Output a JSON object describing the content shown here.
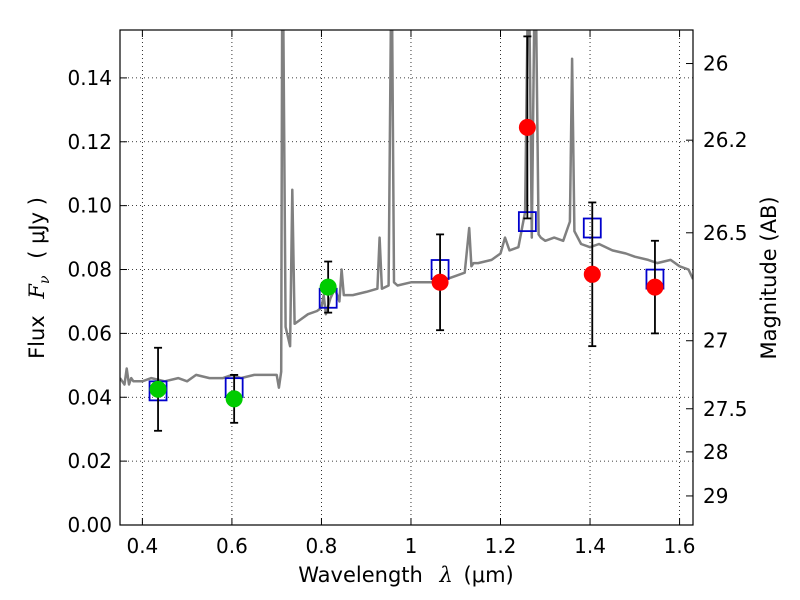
{
  "chart_data": {
    "type": "scatter",
    "xlabel": {
      "text": "Wavelength",
      "symbol": "λ",
      "unit": "(μm)"
    },
    "ylabel": {
      "text": "Flux",
      "symbol": "F",
      "subscript": "ν",
      "unit": "( μJy )"
    },
    "y2label": "Magnitude (AB)",
    "xlim": [
      0.35,
      1.63
    ],
    "ylim": [
      0.0,
      0.155
    ],
    "xticks": [
      0.4,
      0.6,
      0.8,
      1.0,
      1.2,
      1.4,
      1.6
    ],
    "xtick_labels": [
      "0.4",
      "0.6",
      "0.8",
      "1",
      "1.2",
      "1.4",
      "1.6"
    ],
    "yticks": [
      0.0,
      0.02,
      0.04,
      0.06,
      0.08,
      0.1,
      0.12,
      0.14
    ],
    "ytick_labels": [
      "0.00",
      "0.02",
      "0.04",
      "0.06",
      "0.08",
      "0.10",
      "0.12",
      "0.14"
    ],
    "y2ticks": [
      {
        "flux": 0.1445,
        "label": "26"
      },
      {
        "flux": 0.1205,
        "label": "26.2"
      },
      {
        "flux": 0.0915,
        "label": "26.5"
      },
      {
        "flux": 0.0577,
        "label": "27"
      },
      {
        "flux": 0.0364,
        "label": "27.5"
      },
      {
        "flux": 0.0229,
        "label": "28"
      },
      {
        "flux": 0.0091,
        "label": "29"
      }
    ],
    "grid": true,
    "series": [
      {
        "style": "line",
        "color": "#808080",
        "x": [
          0.35,
          0.36,
          0.365,
          0.37,
          0.375,
          0.38,
          0.4,
          0.42,
          0.45,
          0.48,
          0.5,
          0.52,
          0.55,
          0.58,
          0.6,
          0.62,
          0.65,
          0.68,
          0.7,
          0.705,
          0.71,
          0.712,
          0.715,
          0.72,
          0.73,
          0.735,
          0.74,
          0.75,
          0.77,
          0.79,
          0.8,
          0.805,
          0.81,
          0.82,
          0.83,
          0.84,
          0.845,
          0.85,
          0.87,
          0.9,
          0.925,
          0.93,
          0.935,
          0.95,
          0.955,
          0.958,
          0.962,
          0.97,
          1.0,
          1.05,
          1.08,
          1.1,
          1.12,
          1.13,
          1.135,
          1.14,
          1.15,
          1.18,
          1.2,
          1.21,
          1.22,
          1.24,
          1.255,
          1.26,
          1.265,
          1.27,
          1.275,
          1.28,
          1.285,
          1.29,
          1.3,
          1.32,
          1.34,
          1.355,
          1.36,
          1.365,
          1.38,
          1.4,
          1.42,
          1.45,
          1.48,
          1.5,
          1.53,
          1.55,
          1.58,
          1.6,
          1.62,
          1.63
        ],
        "y": [
          0.046,
          0.044,
          0.049,
          0.044,
          0.046,
          0.045,
          0.045,
          0.046,
          0.045,
          0.046,
          0.045,
          0.047,
          0.046,
          0.046,
          0.047,
          0.046,
          0.047,
          0.047,
          0.047,
          0.043,
          0.048,
          0.155,
          0.155,
          0.062,
          0.056,
          0.105,
          0.063,
          0.064,
          0.066,
          0.067,
          0.068,
          0.072,
          0.066,
          0.071,
          0.074,
          0.07,
          0.08,
          0.072,
          0.072,
          0.073,
          0.074,
          0.09,
          0.074,
          0.075,
          0.155,
          0.155,
          0.076,
          0.075,
          0.076,
          0.076,
          0.077,
          0.078,
          0.079,
          0.093,
          0.081,
          0.082,
          0.082,
          0.083,
          0.085,
          0.09,
          0.086,
          0.087,
          0.098,
          0.155,
          0.155,
          0.09,
          0.155,
          0.155,
          0.091,
          0.09,
          0.089,
          0.09,
          0.089,
          0.095,
          0.146,
          0.092,
          0.088,
          0.087,
          0.088,
          0.086,
          0.085,
          0.084,
          0.083,
          0.082,
          0.083,
          0.081,
          0.08,
          0.077
        ]
      },
      {
        "style": "open-square",
        "color": "#0000cc",
        "x": [
          0.435,
          0.605,
          0.815,
          1.065,
          1.26,
          1.405,
          1.545
        ],
        "y": [
          0.042,
          0.043,
          0.071,
          0.08,
          0.095,
          0.093,
          0.077
        ]
      },
      {
        "style": "filled-circle",
        "color": "#00cc00",
        "x": [
          0.435,
          0.605,
          0.815
        ],
        "y": [
          0.0425,
          0.0395,
          0.0745
        ],
        "yerr": [
          0.013,
          0.0075,
          0.008
        ]
      },
      {
        "style": "filled-circle",
        "color": "#ff0000",
        "x": [
          1.065,
          1.26,
          1.405,
          1.545
        ],
        "y": [
          0.076,
          0.1245,
          0.0785,
          0.0745
        ],
        "yerr": [
          0.015,
          0.0285,
          0.0225,
          0.0145
        ]
      }
    ]
  }
}
